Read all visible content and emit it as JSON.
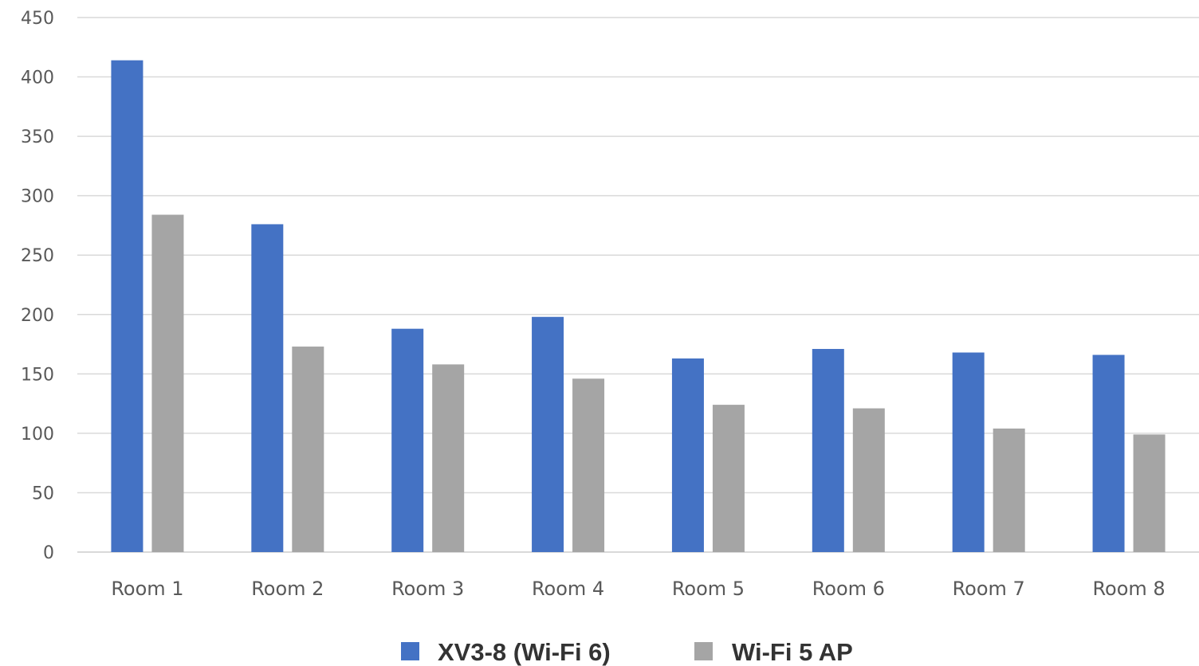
{
  "chart_data": {
    "type": "bar",
    "categories": [
      "Room 1",
      "Room 2",
      "Room 3",
      "Room 4",
      "Room 5",
      "Room 6",
      "Room 7",
      "Room 8"
    ],
    "series": [
      {
        "name": "XV3-8 (Wi-Fi 6)",
        "color": "#4472c4",
        "values": [
          414,
          276,
          188,
          198,
          163,
          171,
          168,
          166
        ]
      },
      {
        "name": "Wi-Fi 5 AP",
        "color": "#a5a5a5",
        "values": [
          284,
          173,
          158,
          146,
          124,
          121,
          104,
          99
        ]
      }
    ],
    "y_ticks": [
      "0",
      "50",
      "100",
      "150",
      "200",
      "250",
      "300",
      "350",
      "400",
      "450"
    ],
    "ylim": [
      0,
      450
    ],
    "grid": true,
    "legend_position": "bottom-center"
  }
}
